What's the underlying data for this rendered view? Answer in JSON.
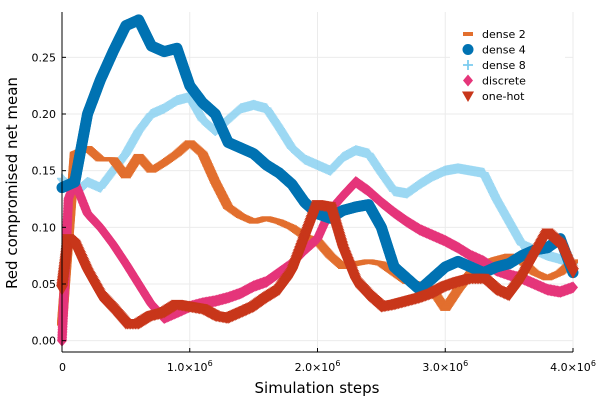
{
  "chart_data": {
    "type": "scatter",
    "title": "",
    "xlabel": "Simulation steps",
    "ylabel": "Red compromised net mean",
    "xlim": [
      0,
      4000000
    ],
    "ylim": [
      -0.01,
      0.29
    ],
    "grid": true,
    "legend_position": "top-right",
    "x_ticks": [
      {
        "value": 0,
        "base": "0",
        "exp": ""
      },
      {
        "value": 1000000,
        "base": "1.0×10",
        "exp": "6"
      },
      {
        "value": 2000000,
        "base": "2.0×10",
        "exp": "6"
      },
      {
        "value": 3000000,
        "base": "3.0×10",
        "exp": "6"
      },
      {
        "value": 4000000,
        "base": "4.0×10",
        "exp": "6"
      }
    ],
    "y_ticks": [
      {
        "value": 0.0,
        "label": "0.00"
      },
      {
        "value": 0.05,
        "label": "0.05"
      },
      {
        "value": 0.1,
        "label": "0.10"
      },
      {
        "value": 0.15,
        "label": "0.15"
      },
      {
        "value": 0.2,
        "label": "0.20"
      },
      {
        "value": 0.25,
        "label": "0.25"
      }
    ],
    "series": [
      {
        "name": "dense 2",
        "marker": "hline",
        "color": "#E26F2E",
        "points": [
          [
            0,
            0.015
          ],
          [
            100000,
            0.165
          ],
          [
            200000,
            0.17
          ],
          [
            300000,
            0.16
          ],
          [
            400000,
            0.16
          ],
          [
            500000,
            0.145
          ],
          [
            600000,
            0.163
          ],
          [
            700000,
            0.15
          ],
          [
            800000,
            0.157
          ],
          [
            900000,
            0.165
          ],
          [
            1000000,
            0.175
          ],
          [
            1100000,
            0.165
          ],
          [
            1200000,
            0.14
          ],
          [
            1300000,
            0.118
          ],
          [
            1400000,
            0.11
          ],
          [
            1500000,
            0.105
          ],
          [
            1600000,
            0.108
          ],
          [
            1700000,
            0.105
          ],
          [
            1800000,
            0.1
          ],
          [
            1900000,
            0.092
          ],
          [
            2000000,
            0.088
          ],
          [
            2100000,
            0.075
          ],
          [
            2200000,
            0.065
          ],
          [
            2300000,
            0.068
          ],
          [
            2400000,
            0.07
          ],
          [
            2500000,
            0.068
          ],
          [
            2600000,
            0.06
          ],
          [
            2700000,
            0.052
          ],
          [
            2800000,
            0.05
          ],
          [
            2900000,
            0.045
          ],
          [
            3000000,
            0.028
          ],
          [
            3100000,
            0.045
          ],
          [
            3200000,
            0.06
          ],
          [
            3300000,
            0.068
          ],
          [
            3400000,
            0.072
          ],
          [
            3500000,
            0.075
          ],
          [
            3600000,
            0.07
          ],
          [
            3700000,
            0.06
          ],
          [
            3800000,
            0.055
          ],
          [
            3900000,
            0.06
          ],
          [
            4000000,
            0.07
          ]
        ]
      },
      {
        "name": "dense 4",
        "marker": "circle",
        "color": "#0072B2",
        "points": [
          [
            0,
            0.135
          ],
          [
            100000,
            0.14
          ],
          [
            200000,
            0.2
          ],
          [
            300000,
            0.23
          ],
          [
            400000,
            0.255
          ],
          [
            500000,
            0.278
          ],
          [
            600000,
            0.283
          ],
          [
            700000,
            0.26
          ],
          [
            800000,
            0.255
          ],
          [
            900000,
            0.258
          ],
          [
            1000000,
            0.225
          ],
          [
            1100000,
            0.21
          ],
          [
            1200000,
            0.2
          ],
          [
            1300000,
            0.175
          ],
          [
            1400000,
            0.17
          ],
          [
            1500000,
            0.165
          ],
          [
            1600000,
            0.155
          ],
          [
            1700000,
            0.148
          ],
          [
            1800000,
            0.138
          ],
          [
            1900000,
            0.122
          ],
          [
            2000000,
            0.112
          ],
          [
            2100000,
            0.108
          ],
          [
            2200000,
            0.115
          ],
          [
            2300000,
            0.118
          ],
          [
            2400000,
            0.12
          ],
          [
            2500000,
            0.1
          ],
          [
            2600000,
            0.065
          ],
          [
            2700000,
            0.055
          ],
          [
            2800000,
            0.045
          ],
          [
            2900000,
            0.055
          ],
          [
            3000000,
            0.065
          ],
          [
            3100000,
            0.07
          ],
          [
            3200000,
            0.065
          ],
          [
            3300000,
            0.06
          ],
          [
            3400000,
            0.065
          ],
          [
            3500000,
            0.068
          ],
          [
            3600000,
            0.075
          ],
          [
            3700000,
            0.08
          ],
          [
            3800000,
            0.082
          ],
          [
            3900000,
            0.09
          ],
          [
            4000000,
            0.06
          ]
        ]
      },
      {
        "name": "dense 8",
        "marker": "plus",
        "color": "#7CCCEF",
        "points": [
          [
            0,
            0.143
          ],
          [
            100000,
            0.13
          ],
          [
            200000,
            0.14
          ],
          [
            300000,
            0.135
          ],
          [
            400000,
            0.15
          ],
          [
            500000,
            0.165
          ],
          [
            600000,
            0.185
          ],
          [
            700000,
            0.2
          ],
          [
            800000,
            0.205
          ],
          [
            900000,
            0.212
          ],
          [
            1000000,
            0.215
          ],
          [
            1100000,
            0.195
          ],
          [
            1200000,
            0.185
          ],
          [
            1300000,
            0.195
          ],
          [
            1400000,
            0.205
          ],
          [
            1500000,
            0.208
          ],
          [
            1600000,
            0.205
          ],
          [
            1700000,
            0.188
          ],
          [
            1800000,
            0.17
          ],
          [
            1900000,
            0.16
          ],
          [
            2000000,
            0.155
          ],
          [
            2100000,
            0.15
          ],
          [
            2200000,
            0.162
          ],
          [
            2300000,
            0.168
          ],
          [
            2400000,
            0.165
          ],
          [
            2500000,
            0.148
          ],
          [
            2600000,
            0.132
          ],
          [
            2700000,
            0.13
          ],
          [
            2800000,
            0.138
          ],
          [
            2900000,
            0.145
          ],
          [
            3000000,
            0.15
          ],
          [
            3100000,
            0.152
          ],
          [
            3200000,
            0.15
          ],
          [
            3300000,
            0.148
          ],
          [
            3400000,
            0.125
          ],
          [
            3500000,
            0.105
          ],
          [
            3600000,
            0.085
          ],
          [
            3700000,
            0.08
          ],
          [
            3800000,
            0.075
          ],
          [
            3900000,
            0.072
          ],
          [
            4000000,
            0.068
          ]
        ]
      },
      {
        "name": "discrete",
        "marker": "diamond",
        "color": "#E5357A",
        "points": [
          [
            0,
            0.0
          ],
          [
            50000,
            0.125
          ],
          [
            100000,
            0.14
          ],
          [
            200000,
            0.112
          ],
          [
            300000,
            0.1
          ],
          [
            400000,
            0.085
          ],
          [
            500000,
            0.068
          ],
          [
            600000,
            0.05
          ],
          [
            700000,
            0.032
          ],
          [
            800000,
            0.02
          ],
          [
            900000,
            0.025
          ],
          [
            1000000,
            0.03
          ],
          [
            1100000,
            0.033
          ],
          [
            1200000,
            0.035
          ],
          [
            1300000,
            0.038
          ],
          [
            1400000,
            0.042
          ],
          [
            1500000,
            0.048
          ],
          [
            1600000,
            0.052
          ],
          [
            1700000,
            0.06
          ],
          [
            1800000,
            0.068
          ],
          [
            1900000,
            0.08
          ],
          [
            2000000,
            0.09
          ],
          [
            2100000,
            0.115
          ],
          [
            2200000,
            0.128
          ],
          [
            2300000,
            0.14
          ],
          [
            2400000,
            0.132
          ],
          [
            2500000,
            0.122
          ],
          [
            2600000,
            0.113
          ],
          [
            2700000,
            0.105
          ],
          [
            2800000,
            0.098
          ],
          [
            2900000,
            0.093
          ],
          [
            3000000,
            0.088
          ],
          [
            3100000,
            0.082
          ],
          [
            3200000,
            0.075
          ],
          [
            3300000,
            0.07
          ],
          [
            3400000,
            0.062
          ],
          [
            3500000,
            0.058
          ],
          [
            3600000,
            0.055
          ],
          [
            3700000,
            0.05
          ],
          [
            3800000,
            0.045
          ],
          [
            3900000,
            0.043
          ],
          [
            4000000,
            0.047
          ]
        ]
      },
      {
        "name": "one-hot",
        "marker": "triangle-down",
        "color": "#C8361A",
        "points": [
          [
            0,
            0.045
          ],
          [
            50000,
            0.09
          ],
          [
            100000,
            0.085
          ],
          [
            200000,
            0.06
          ],
          [
            300000,
            0.04
          ],
          [
            400000,
            0.028
          ],
          [
            500000,
            0.015
          ],
          [
            600000,
            0.015
          ],
          [
            700000,
            0.022
          ],
          [
            800000,
            0.025
          ],
          [
            900000,
            0.032
          ],
          [
            1000000,
            0.03
          ],
          [
            1100000,
            0.028
          ],
          [
            1200000,
            0.022
          ],
          [
            1300000,
            0.02
          ],
          [
            1400000,
            0.025
          ],
          [
            1500000,
            0.03
          ],
          [
            1600000,
            0.038
          ],
          [
            1700000,
            0.045
          ],
          [
            1800000,
            0.06
          ],
          [
            1900000,
            0.09
          ],
          [
            2000000,
            0.12
          ],
          [
            2100000,
            0.118
          ],
          [
            2200000,
            0.08
          ],
          [
            2300000,
            0.052
          ],
          [
            2400000,
            0.04
          ],
          [
            2500000,
            0.03
          ],
          [
            2600000,
            0.032
          ],
          [
            2700000,
            0.035
          ],
          [
            2800000,
            0.038
          ],
          [
            2900000,
            0.042
          ],
          [
            3000000,
            0.048
          ],
          [
            3100000,
            0.052
          ],
          [
            3200000,
            0.055
          ],
          [
            3300000,
            0.055
          ],
          [
            3400000,
            0.045
          ],
          [
            3500000,
            0.04
          ],
          [
            3600000,
            0.055
          ],
          [
            3700000,
            0.075
          ],
          [
            3800000,
            0.095
          ],
          [
            3900000,
            0.085
          ],
          [
            4000000,
            0.06
          ]
        ]
      }
    ]
  }
}
